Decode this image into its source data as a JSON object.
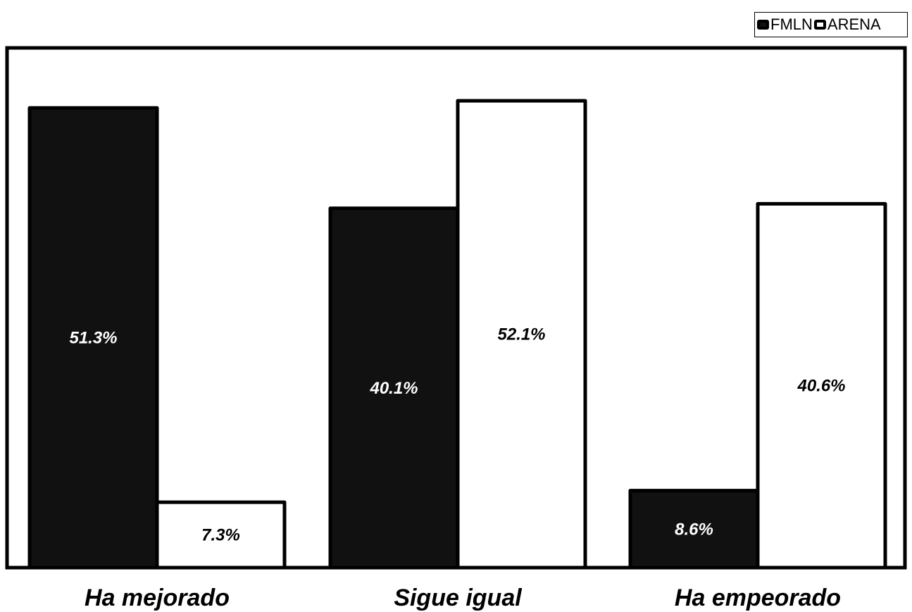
{
  "chart_data": {
    "type": "bar",
    "categories": [
      "Ha mejorado",
      "Sigue igual",
      "Ha empeorado"
    ],
    "series": [
      {
        "name": "FMLN",
        "values": [
          51.3,
          40.1,
          8.6
        ],
        "labels": [
          "51.3%",
          "40.1%",
          "8.6%"
        ],
        "color": "#111111"
      },
      {
        "name": "ARENA",
        "values": [
          7.3,
          52.1,
          40.6
        ],
        "labels": [
          "7.3%",
          "52.1%",
          "40.6%"
        ],
        "color": "#ffffff"
      }
    ],
    "ylim": [
      0,
      58
    ],
    "grid": false,
    "legend_position": "top-right",
    "axes_visible": false
  }
}
